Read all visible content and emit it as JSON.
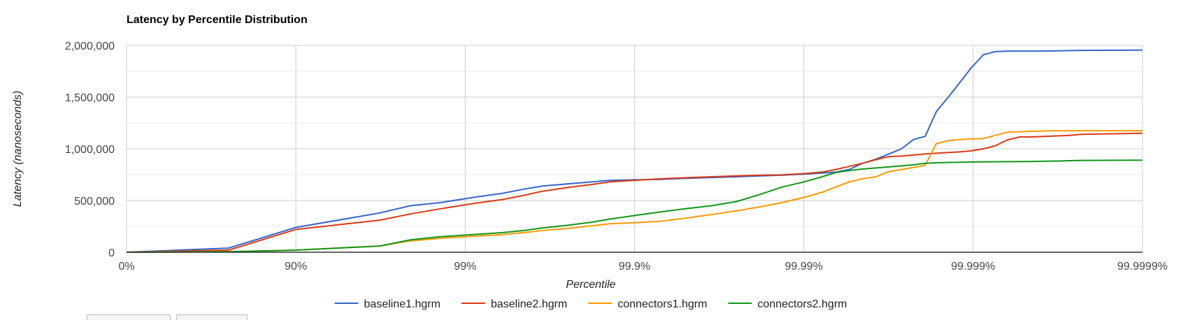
{
  "chart_data": {
    "type": "line",
    "title": "Latency by Percentile Distribution",
    "xlabel": "Percentile",
    "ylabel": "Latency (nanoseconds)",
    "x_scale": "log-percentile (tick at each additional nine)",
    "x_ticks": [
      "0%",
      "90%",
      "99%",
      "99.9%",
      "99.99%",
      "99.999%",
      "99.9999%"
    ],
    "x_tick_values": [
      0,
      90,
      99,
      99.9,
      99.99,
      99.999,
      99.9999
    ],
    "y_ticks": [
      "0",
      "500,000",
      "1,000,000",
      "1,500,000",
      "2,000,000"
    ],
    "ylim": [
      0,
      2000000
    ],
    "grid": true,
    "legend_position": "bottom",
    "series": [
      {
        "name": "baseline1.hgrm",
        "color": "#3366cc",
        "percentile": [
          0,
          75,
          90,
          96.8,
          97.9,
          98.6,
          99.1,
          99.4,
          99.55,
          99.65,
          99.75,
          99.82,
          99.86,
          99.9,
          99.93,
          99.95,
          99.965,
          99.975,
          99.982,
          99.9865,
          99.99,
          99.9922,
          99.9935,
          99.9946,
          99.9955,
          99.99625,
          99.99685,
          99.99735,
          99.99775,
          99.99808,
          99.99835,
          99.9986,
          99.9988,
          99.99897,
          99.99913,
          99.99926,
          99.99937,
          99.99947,
          99.99955,
          99.99962,
          99.99968,
          99.99973,
          99.99977,
          99.9999
        ],
        "values": [
          0,
          40000,
          240000,
          380000,
          450000,
          480000,
          530000,
          570000,
          610000,
          640000,
          660000,
          680000,
          695000,
          700000,
          705000,
          715000,
          722000,
          730000,
          738000,
          745000,
          755000,
          765000,
          775000,
          800000,
          860000,
          900000,
          950000,
          1000000,
          1090000,
          1120000,
          1360000,
          1500000,
          1640000,
          1780000,
          1910000,
          1940000,
          1945000,
          1945000,
          1945000,
          1945000,
          1948000,
          1950000,
          1952000,
          1955000
        ]
      },
      {
        "name": "baseline2.hgrm",
        "color": "#dc3912",
        "percentile": [
          0,
          75,
          90,
          96.8,
          97.9,
          98.6,
          99.1,
          99.4,
          99.55,
          99.65,
          99.75,
          99.82,
          99.86,
          99.9,
          99.93,
          99.95,
          99.965,
          99.975,
          99.982,
          99.9865,
          99.99,
          99.9922,
          99.9935,
          99.9946,
          99.9955,
          99.99625,
          99.99685,
          99.99735,
          99.99775,
          99.99808,
          99.99835,
          99.9986,
          99.9988,
          99.99897,
          99.99913,
          99.99926,
          99.99937,
          99.99947,
          99.99955,
          99.99962,
          99.99968,
          99.99973,
          99.99977,
          99.9999
        ],
        "values": [
          0,
          20000,
          220000,
          310000,
          370000,
          420000,
          470000,
          510000,
          550000,
          590000,
          625000,
          655000,
          680000,
          695000,
          710000,
          720000,
          730000,
          738000,
          745000,
          748000,
          760000,
          775000,
          800000,
          830000,
          860000,
          895000,
          925000,
          930000,
          940000,
          950000,
          958000,
          965000,
          970000,
          980000,
          1000000,
          1030000,
          1085000,
          1115000,
          1115000,
          1120000,
          1125000,
          1130000,
          1140000,
          1150000
        ]
      },
      {
        "name": "connectors1.hgrm",
        "color": "#ff9900",
        "percentile": [
          0,
          75,
          90,
          96.8,
          97.9,
          98.6,
          99.1,
          99.4,
          99.55,
          99.65,
          99.75,
          99.82,
          99.86,
          99.9,
          99.93,
          99.95,
          99.965,
          99.975,
          99.982,
          99.9865,
          99.99,
          99.9922,
          99.9935,
          99.9946,
          99.9955,
          99.99625,
          99.99685,
          99.99735,
          99.99775,
          99.99808,
          99.99835,
          99.9986,
          99.9988,
          99.99897,
          99.99913,
          99.99926,
          99.99937,
          99.99947,
          99.99955,
          99.99962,
          99.99968,
          99.99973,
          99.99977,
          99.9999
        ],
        "values": [
          0,
          5000,
          20000,
          60000,
          110000,
          135000,
          155000,
          170000,
          190000,
          210000,
          230000,
          255000,
          275000,
          285000,
          300000,
          330000,
          365000,
          400000,
          440000,
          480000,
          530000,
          580000,
          630000,
          680000,
          710000,
          730000,
          780000,
          800000,
          820000,
          840000,
          1050000,
          1080000,
          1090000,
          1095000,
          1100000,
          1130000,
          1160000,
          1165000,
          1170000,
          1172000,
          1175000,
          1175000,
          1175000,
          1175000
        ]
      },
      {
        "name": "connectors2.hgrm",
        "color": "#109618",
        "percentile": [
          0,
          75,
          90,
          96.8,
          97.9,
          98.6,
          99.1,
          99.4,
          99.55,
          99.65,
          99.75,
          99.82,
          99.86,
          99.9,
          99.93,
          99.95,
          99.965,
          99.975,
          99.982,
          99.9865,
          99.99,
          99.9922,
          99.9935,
          99.9946,
          99.9955,
          99.99625,
          99.99685,
          99.99735,
          99.99775,
          99.99808,
          99.99835,
          99.9986,
          99.9988,
          99.99897,
          99.99913,
          99.99926,
          99.99937,
          99.99947,
          99.99955,
          99.99962,
          99.99968,
          99.99973,
          99.99977,
          99.9999
        ],
        "values": [
          0,
          5000,
          20000,
          60000,
          120000,
          150000,
          170000,
          190000,
          210000,
          235000,
          260000,
          290000,
          320000,
          355000,
          390000,
          420000,
          450000,
          490000,
          560000,
          630000,
          680000,
          730000,
          770000,
          790000,
          805000,
          815000,
          825000,
          835000,
          845000,
          860000,
          865000,
          868000,
          870000,
          872000,
          874000,
          875000,
          876000,
          877000,
          878000,
          880000,
          882000,
          885000,
          888000,
          890000
        ]
      }
    ]
  }
}
